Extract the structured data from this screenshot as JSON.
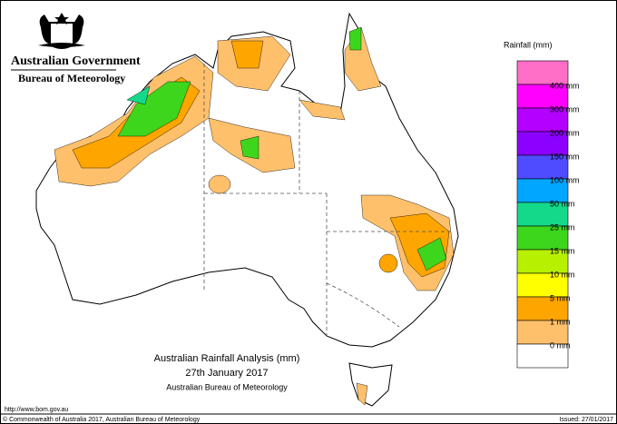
{
  "header": {
    "government": "Australian Government",
    "agency": "Bureau of Meteorology"
  },
  "legend": {
    "title": "Rainfall (mm)",
    "items": [
      {
        "color": "#ff6ec7",
        "label": null
      },
      {
        "color": "#ff00ff",
        "label": "400 mm"
      },
      {
        "color": "#b300ff",
        "label": "300 mm"
      },
      {
        "color": "#8c00ff",
        "label": "200 mm"
      },
      {
        "color": "#4f4cff",
        "label": "150 mm"
      },
      {
        "color": "#00a6ff",
        "label": "100 mm"
      },
      {
        "color": "#14d98a",
        "label": "50 mm"
      },
      {
        "color": "#3ed61d",
        "label": "25 mm"
      },
      {
        "color": "#b7f000",
        "label": "15 mm"
      },
      {
        "color": "#ffff00",
        "label": "10 mm"
      },
      {
        "color": "#ffa500",
        "label": "5 mm"
      },
      {
        "color": "#ffc06b",
        "label": "1 mm"
      },
      {
        "color": "#ffffff",
        "label": "0 mm"
      }
    ]
  },
  "map": {
    "title": "Australian Rainfall Analysis (mm)",
    "date": "27th January 2017",
    "source": "Australian Bureau of Meteorology"
  },
  "footer": {
    "url": "http://www.bom.gov.au",
    "copyright": "© Commonwealth of Australia 2017, Australian Bureau of Meteorology",
    "issued": "Issued: 27/01/2017"
  }
}
